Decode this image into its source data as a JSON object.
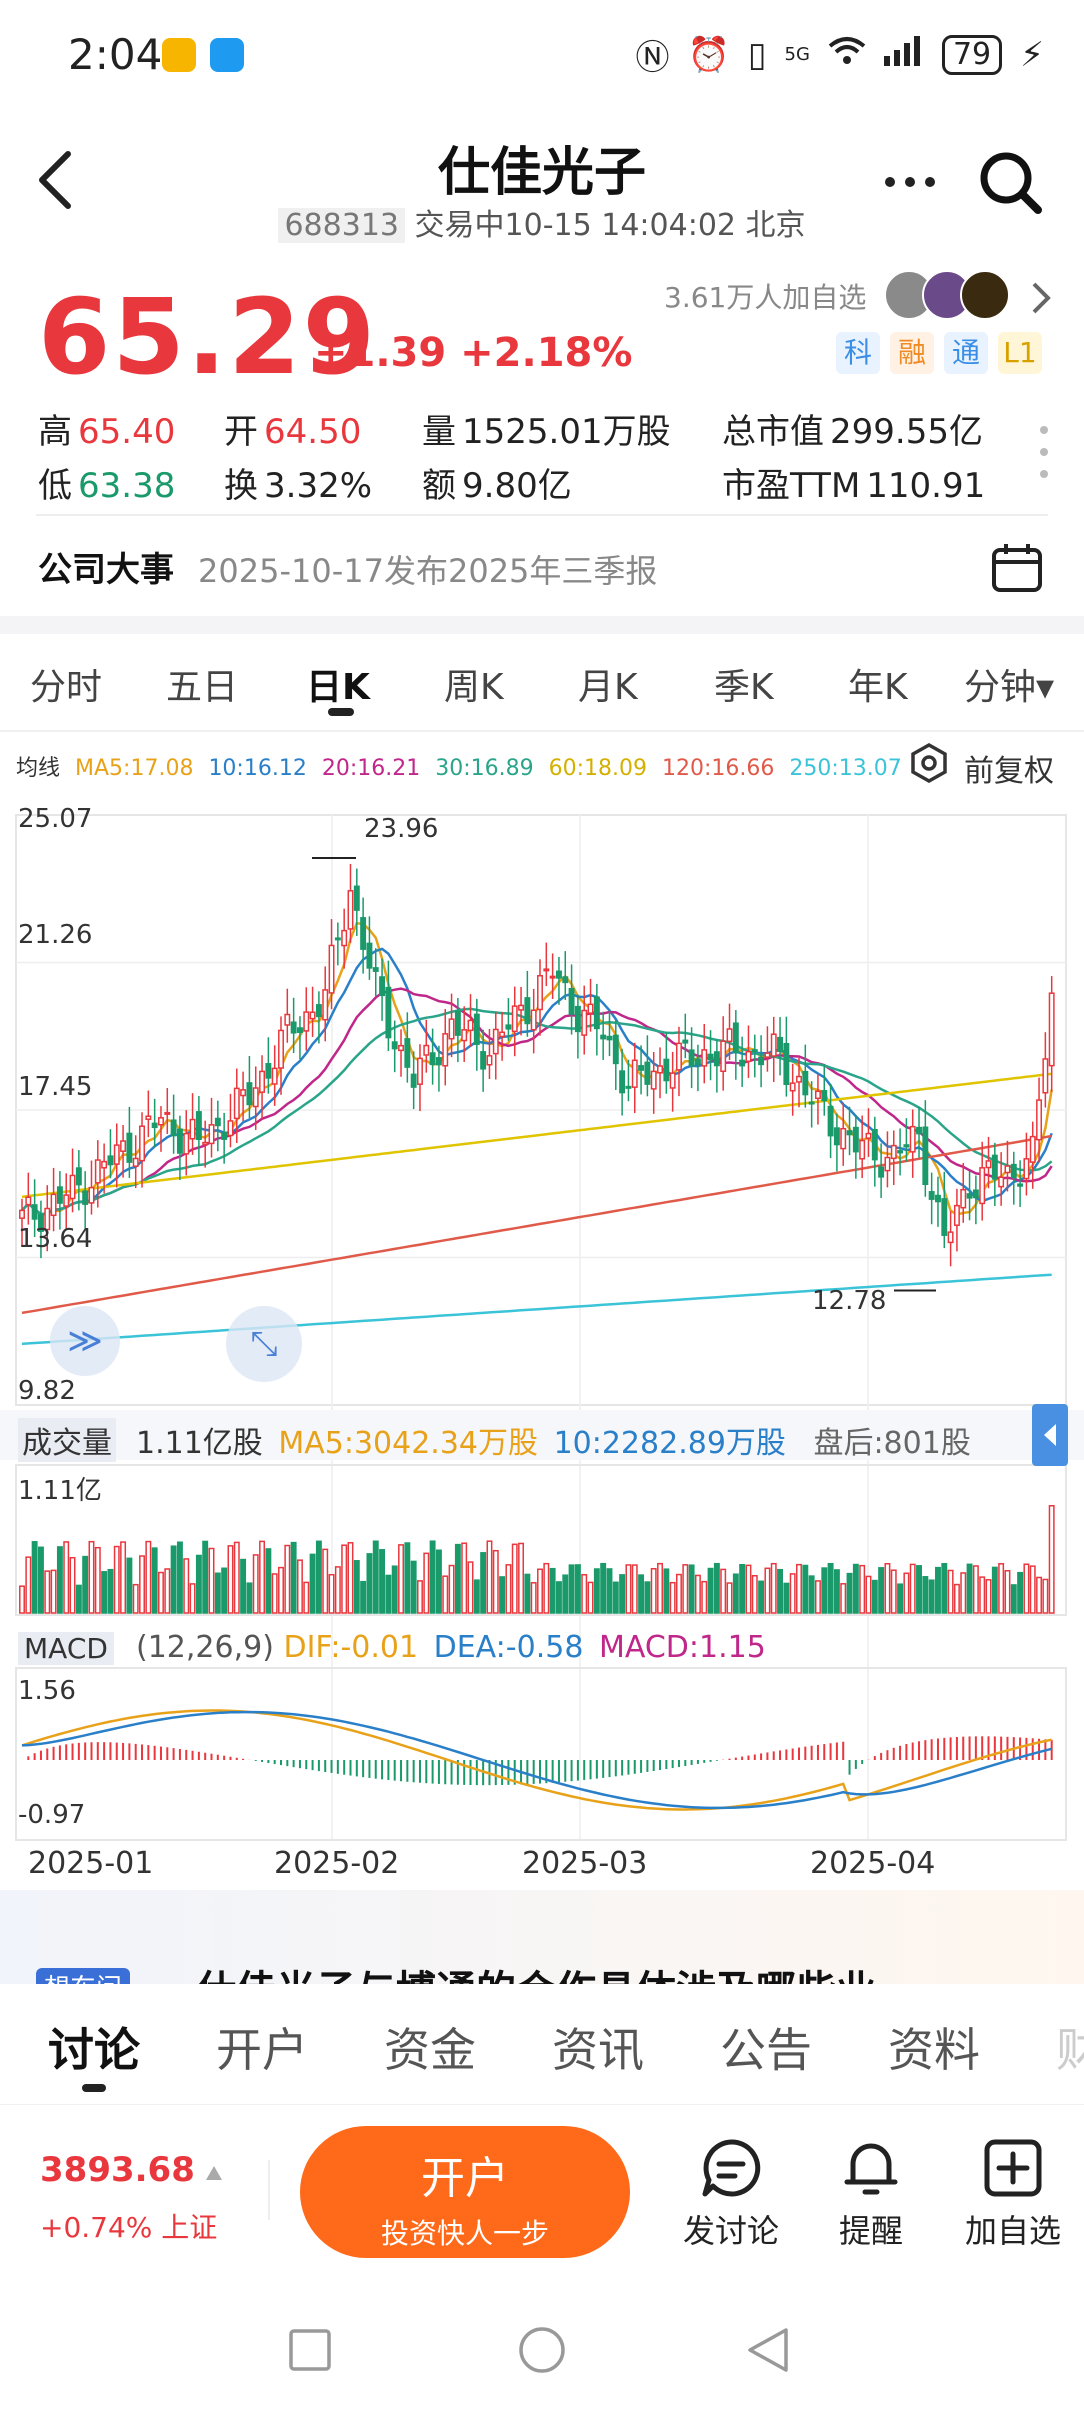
{
  "status_bar": {
    "time": "2:04",
    "network": "5G",
    "battery": "79"
  },
  "header": {
    "title": "仕佳光子",
    "code": "688313",
    "status_line": "交易中10-15 14:04:02 北京"
  },
  "quote": {
    "price": "65.29",
    "change": "+1.39",
    "change_pct": "+2.18%",
    "follow_count": "3.61万人加自选",
    "tags": [
      "科",
      "融",
      "通",
      "L1"
    ]
  },
  "stats": {
    "high_label": "高",
    "high": "65.40",
    "low_label": "低",
    "low": "63.38",
    "open_label": "开",
    "open": "64.50",
    "turnover_label": "换",
    "turnover": "3.32%",
    "volume_label": "量",
    "volume": "1525.01万股",
    "amount_label": "额",
    "amount": "9.80亿",
    "mktcap_label": "总市值",
    "mktcap": "299.55亿",
    "pe_label": "市盈TTM",
    "pe": "110.91"
  },
  "event": {
    "label": "公司大事",
    "text": "2025-10-17发布2025年三季报"
  },
  "period_tabs": [
    "分时",
    "五日",
    "日K",
    "周K",
    "月K",
    "季K",
    "年K",
    "分钟▾"
  ],
  "ma_legend": {
    "title": "均线",
    "ma5": "MA5:17.08",
    "ma10": "10:16.12",
    "ma20": "20:16.21",
    "ma30": "30:16.89",
    "ma60": "60:18.09",
    "ma120": "120:16.66",
    "ma250": "250:13.07",
    "adjust": "前复权"
  },
  "colors": {
    "up": "#e8373d",
    "down": "#1a9a6a",
    "ma5": "#e8a21a",
    "ma10": "#2a7fc9",
    "ma20": "#c0278a",
    "ma30": "#2aa58a",
    "ma60": "#e0c400",
    "ma120": "#e05a4a",
    "ma250": "#3bc4d8"
  },
  "volume": {
    "title": "成交量",
    "value": "1.11亿股",
    "ma5": "MA5:3042.34万股",
    "ma10": "10:2282.89万股",
    "after": "盘后:801股"
  },
  "macd": {
    "title": "MACD",
    "params": "(12,26,9)",
    "dif": "DIF:-0.01",
    "dea": "DEA:-0.58",
    "macd": "MACD:1.15"
  },
  "chart_data": {
    "type": "candlestick",
    "y_ticks": [
      "25.07",
      "21.26",
      "17.45",
      "13.64",
      "9.82"
    ],
    "ylim": [
      9.82,
      25.07
    ],
    "max_label": "23.96",
    "min_label": "12.78",
    "volume_max_label": "1.11亿",
    "macd_ticks": [
      "1.56",
      "-0.97"
    ],
    "x_ticks": [
      "2025-01",
      "2025-02",
      "2025-03",
      "2025-04"
    ]
  },
  "news": {
    "tag": "想东问",
    "text": "仕佳光子与博通的合作具体涉及哪些业"
  },
  "bottom_tabs": [
    "讨论",
    "开户",
    "资金",
    "资讯",
    "公告",
    "资料",
    "财"
  ],
  "action_bar": {
    "index_value": "3893.68",
    "index_change": "+0.74% 上证",
    "open_main": "开户",
    "open_sub": "投资快人一步",
    "discuss": "发讨论",
    "remind": "提醒",
    "watch": "加自选"
  }
}
